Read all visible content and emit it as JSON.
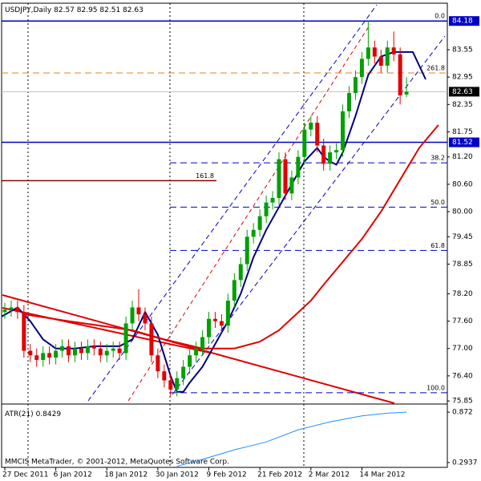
{
  "header": {
    "symbol": "USDJPY,Daily"
  },
  "chart_data": [
    {
      "type": "candlestick",
      "open": [
        77.8,
        77.85,
        77.9,
        77.8,
        76.95,
        76.85,
        76.75,
        76.9,
        76.8,
        76.95,
        77.05,
        76.85,
        77.0,
        76.9,
        77.05,
        77.0,
        76.85,
        76.95,
        77.0,
        76.9,
        77.55,
        77.9,
        77.75,
        77.55,
        76.85,
        76.5,
        76.3,
        76.1,
        76.35,
        76.6,
        76.85,
        77.0,
        77.25,
        77.65,
        77.6,
        77.5,
        78.05,
        78.5,
        78.85,
        79.45,
        79.6,
        79.9,
        80.2,
        80.3,
        81.15,
        80.4,
        80.75,
        81.2,
        81.8,
        81.95,
        81.45,
        81.05,
        81.3,
        81.35,
        82.2,
        82.6,
        82.95,
        83.35,
        83.6,
        83.4,
        83.2,
        83.6,
        83.45,
        82.57
      ],
      "high": [
        78.0,
        78.05,
        78.05,
        77.95,
        77.1,
        77.0,
        77.05,
        77.05,
        77.1,
        77.2,
        77.2,
        77.15,
        77.15,
        77.2,
        77.2,
        77.15,
        77.1,
        77.15,
        77.15,
        77.7,
        78.05,
        78.3,
        77.9,
        77.7,
        77.0,
        76.65,
        76.45,
        76.5,
        76.75,
        77.0,
        77.15,
        77.4,
        77.8,
        77.8,
        77.75,
        78.2,
        78.65,
        79.0,
        79.6,
        79.75,
        80.05,
        80.35,
        80.45,
        81.3,
        81.3,
        80.9,
        81.35,
        81.95,
        82.1,
        82.1,
        81.6,
        81.45,
        81.5,
        82.35,
        82.75,
        83.1,
        83.5,
        84.18,
        83.75,
        83.55,
        83.75,
        83.95,
        83.6,
        82.95
      ],
      "low": [
        77.65,
        77.7,
        77.65,
        76.8,
        76.7,
        76.6,
        76.6,
        76.65,
        76.65,
        76.8,
        76.7,
        76.7,
        76.75,
        76.75,
        76.85,
        76.7,
        76.7,
        76.8,
        76.75,
        76.75,
        77.4,
        77.6,
        77.4,
        76.7,
        76.35,
        76.15,
        75.95,
        75.95,
        76.2,
        76.45,
        76.7,
        76.85,
        77.1,
        77.45,
        77.35,
        77.35,
        77.9,
        78.35,
        78.7,
        79.3,
        79.45,
        79.75,
        80.05,
        80.15,
        80.25,
        80.25,
        80.6,
        81.05,
        81.65,
        81.3,
        80.9,
        80.9,
        81.15,
        81.2,
        82.05,
        82.45,
        82.8,
        83.2,
        83.25,
        83.05,
        83.05,
        83.3,
        82.35,
        82.51
      ],
      "close": [
        77.85,
        77.9,
        77.8,
        76.95,
        76.85,
        76.75,
        76.9,
        76.8,
        76.95,
        77.05,
        76.85,
        77.0,
        76.9,
        77.05,
        77.0,
        76.85,
        76.95,
        77.0,
        76.9,
        77.55,
        77.9,
        77.75,
        77.55,
        76.85,
        76.5,
        76.3,
        76.1,
        76.35,
        76.6,
        76.85,
        77.0,
        77.25,
        77.65,
        77.6,
        77.5,
        78.05,
        78.5,
        78.85,
        79.45,
        79.6,
        79.9,
        80.2,
        80.3,
        81.15,
        80.4,
        80.75,
        81.2,
        81.8,
        81.95,
        81.45,
        81.05,
        81.3,
        81.35,
        82.2,
        82.6,
        82.95,
        83.35,
        83.6,
        83.4,
        83.2,
        83.6,
        83.45,
        82.55,
        82.63
      ],
      "colors": {
        "up": "#00a000",
        "down": "#e00000"
      },
      "xlim": [
        -0.5,
        69.4
      ],
      "ylim": [
        75.8,
        84.57
      ],
      "yticks": [
        83.55,
        82.95,
        82.35,
        81.75,
        {
          "value": 81.2,
          "label": "81.20"
        },
        {
          "value": 80.6,
          "label": "80.60"
        },
        {
          "value": 80,
          "label": "80.00"
        },
        79.45,
        78.85,
        {
          "value": 78.2,
          "label": "78.20"
        },
        {
          "value": 77.6,
          "label": "77.60"
        },
        {
          "value": 77,
          "label": "77.00"
        },
        {
          "value": 76.4,
          "label": "76.40"
        },
        75.85
      ],
      "xticks": [
        {
          "value": 0,
          "label": "27 Dec 2011"
        },
        {
          "value": 8,
          "label": "6 Jan 2012"
        },
        {
          "value": 16,
          "label": "18 Jan 2012"
        },
        {
          "value": 24,
          "label": "30 Jan 2012"
        },
        {
          "value": 32,
          "label": "9 Feb 2012"
        },
        {
          "value": 40,
          "label": "21 Feb 2012"
        },
        {
          "value": 48,
          "label": "2 Mar 2012"
        },
        {
          "value": 56,
          "label": "14 Mar 2012"
        }
      ],
      "overlays": [
        {
          "color": "#000080",
          "x": [
            -0.5,
            2,
            4,
            6,
            8,
            11,
            14,
            18,
            20,
            22,
            24,
            26,
            27,
            28,
            29,
            31,
            33,
            35,
            37,
            39,
            41,
            43,
            45,
            47,
            49,
            50,
            51,
            52,
            53,
            55,
            57,
            59,
            61,
            62,
            64,
            66
          ],
          "values": [
            77.7,
            77.9,
            77.6,
            77.2,
            77.0,
            77.0,
            77.05,
            77.05,
            77.2,
            77.8,
            77.3,
            76.4,
            76.05,
            76.05,
            76.25,
            76.6,
            77.1,
            77.6,
            78.2,
            79.0,
            79.6,
            80.1,
            80.6,
            81.1,
            81.4,
            81.2,
            81.1,
            81.03,
            81.3,
            82.1,
            83.0,
            83.4,
            83.5,
            83.5,
            83.5,
            82.9
          ]
        },
        {
          "color": "#e00000",
          "x": [
            3,
            10,
            20,
            25,
            31,
            36,
            40,
            43,
            48,
            50,
            53,
            56,
            59,
            62,
            65,
            68
          ],
          "values": [
            77.75,
            77.6,
            77.4,
            77.2,
            77.0,
            77.0,
            77.15,
            77.4,
            78.05,
            78.4,
            78.9,
            79.4,
            80.0,
            80.7,
            81.4,
            81.9
          ]
        }
      ],
      "levels": [
        {
          "label": "0.0",
          "value": 84.18,
          "color": "#0000c8",
          "style": "solid",
          "span": "full"
        },
        {
          "label": "261.8",
          "value": 83.04,
          "color": "#e08020",
          "style": "dashed",
          "span": "full"
        },
        {
          "label": "38.2",
          "value": 81.07,
          "color": "#0000c8",
          "style": "dashed",
          "span": "right"
        },
        {
          "label": "50.0",
          "value": 80.1,
          "color": "#0000c8",
          "style": "dashed",
          "span": "right"
        },
        {
          "label": "61.8",
          "value": 79.15,
          "color": "#0000c8",
          "style": "dashed",
          "span": "right"
        },
        {
          "label": "100.0",
          "value": 76.03,
          "color": "#0000c8",
          "style": "dashed",
          "span": "right"
        },
        {
          "label": "161.8",
          "value": 80.68,
          "color": "#8b0000",
          "style": "solid",
          "span": "left"
        }
      ],
      "price_lines": [
        {
          "value": 84.18,
          "color": "#0000c8"
        },
        {
          "value": 81.52,
          "color": "#0000c8"
        }
      ]
    },
    {
      "type": "line",
      "title": "ATR(21)",
      "current": 0.8429,
      "color": "#1e90ff",
      "x": [
        27,
        31,
        36,
        41,
        46,
        51,
        56,
        60,
        63
      ],
      "values": [
        0.25,
        0.33,
        0.44,
        0.53,
        0.67,
        0.76,
        0.83,
        0.86,
        0.872
      ],
      "ylim": [
        0.238,
        0.956
      ],
      "yticks": [
        0.872,
        0.2937
      ]
    }
  ],
  "footer": "MMCIS MetaTrader, © 2001-2012, MetaQuotes Software Corp."
}
